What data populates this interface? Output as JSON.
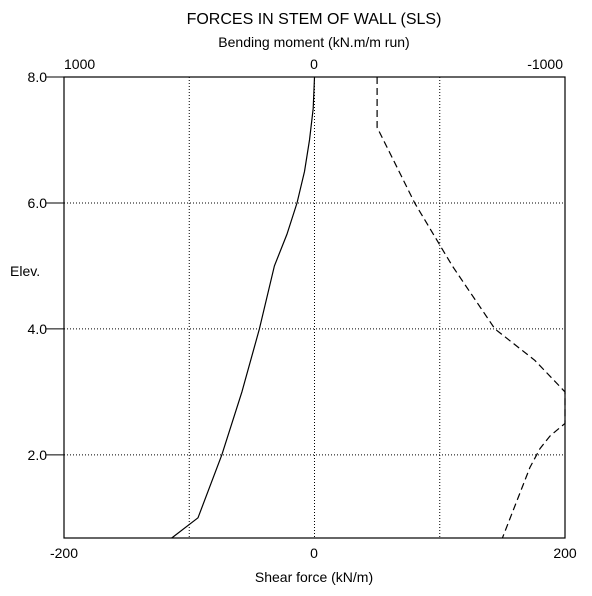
{
  "chart_data": {
    "type": "line",
    "title": "FORCES IN STEM OF WALL  (SLS)",
    "top_axis": {
      "label": "Bending moment (kN.m/m run)",
      "range": [
        1000,
        -1000
      ],
      "tick_labels": [
        "1000",
        "0",
        "-1000"
      ]
    },
    "bottom_axis": {
      "label": "Shear force (kN/m)",
      "range": [
        -200,
        200
      ],
      "tick_labels": [
        "-200",
        "0",
        "200"
      ]
    },
    "y_axis": {
      "label": "Elev.",
      "range": [
        0.68,
        8.0
      ],
      "tick_labels": [
        "8.0",
        "6.0",
        "4.0",
        "2.0"
      ],
      "ticks": [
        8.0,
        6.0,
        4.0,
        2.0
      ]
    },
    "grid": true,
    "series": [
      {
        "style": "solid",
        "axis": "bottom",
        "x": [
          0,
          -1,
          -4,
          -8,
          -14,
          -22,
          -32,
          -44,
          -58,
          -74,
          -93,
          -114
        ],
        "y": [
          8.0,
          7.5,
          7.0,
          6.5,
          6.0,
          5.5,
          5.0,
          4.0,
          3.0,
          2.0,
          1.0,
          0.68
        ]
      },
      {
        "style": "dashed",
        "axis": "top",
        "x": [
          -250,
          -250,
          -300,
          -400,
          -550,
          -720,
          -880,
          -1000,
          -1000,
          -940,
          -900,
          -860,
          -750
        ],
        "y": [
          8.0,
          7.2,
          6.8,
          6.0,
          5.0,
          4.0,
          3.5,
          3.0,
          2.5,
          2.3,
          2.1,
          1.8,
          0.68
        ]
      }
    ]
  }
}
